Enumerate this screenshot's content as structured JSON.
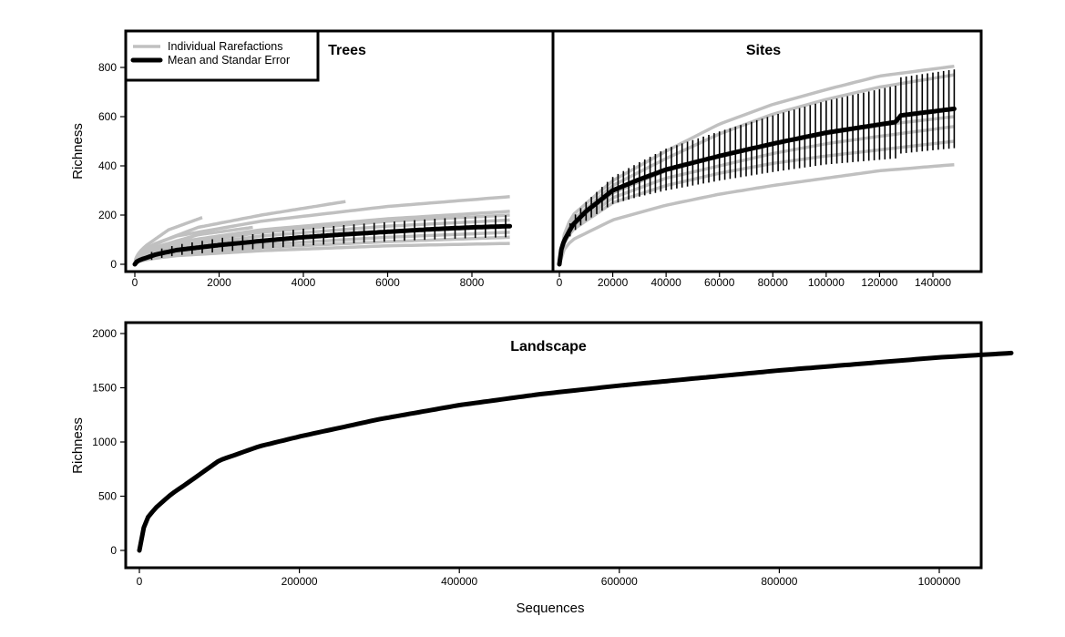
{
  "chart_data": [
    {
      "type": "line",
      "title": "Trees",
      "xlabel": "",
      "ylabel": "Richness",
      "xlim": [
        -300,
        9500
      ],
      "ylim": [
        -30,
        950
      ],
      "xticks": [
        0,
        2000,
        4000,
        6000,
        8000
      ],
      "yticks": [
        0,
        200,
        400,
        600,
        800
      ],
      "legend": {
        "placement": "top-left",
        "entries": [
          {
            "label": "Individual Rarefactions",
            "color": "#c0c0c0"
          },
          {
            "label": "Mean and Standar Error",
            "color": "#000000"
          }
        ]
      },
      "individual_series": [
        [
          [
            0,
            0
          ],
          [
            300,
            80
          ],
          [
            800,
            140
          ],
          [
            1600,
            190
          ]
        ],
        [
          [
            0,
            0
          ],
          [
            500,
            85
          ],
          [
            1500,
            150
          ],
          [
            3000,
            200
          ],
          [
            5000,
            255
          ]
        ],
        [
          [
            0,
            0
          ],
          [
            1000,
            115
          ],
          [
            3000,
            175
          ],
          [
            6000,
            235
          ],
          [
            8900,
            275
          ]
        ],
        [
          [
            0,
            0
          ],
          [
            500,
            70
          ],
          [
            1500,
            120
          ],
          [
            2800,
            150
          ]
        ],
        [
          [
            0,
            0
          ],
          [
            1000,
            90
          ],
          [
            3000,
            140
          ],
          [
            6000,
            185
          ],
          [
            8900,
            215
          ]
        ],
        [
          [
            0,
            0
          ],
          [
            1000,
            80
          ],
          [
            3000,
            130
          ],
          [
            6000,
            175
          ],
          [
            8900,
            200
          ]
        ],
        [
          [
            0,
            0
          ],
          [
            1000,
            70
          ],
          [
            3000,
            115
          ],
          [
            6000,
            155
          ],
          [
            8900,
            180
          ]
        ],
        [
          [
            0,
            0
          ],
          [
            1000,
            50
          ],
          [
            3000,
            80
          ],
          [
            6000,
            110
          ],
          [
            8900,
            130
          ]
        ],
        [
          [
            0,
            0
          ],
          [
            1000,
            40
          ],
          [
            3000,
            68
          ],
          [
            6000,
            92
          ],
          [
            8900,
            110
          ]
        ],
        [
          [
            0,
            0
          ],
          [
            1000,
            35
          ],
          [
            3000,
            55
          ],
          [
            6000,
            75
          ],
          [
            8900,
            85
          ]
        ]
      ],
      "mean": [
        [
          0,
          0
        ],
        [
          250,
          25
        ],
        [
          500,
          40
        ],
        [
          1000,
          58
        ],
        [
          2000,
          78
        ],
        [
          3000,
          95
        ],
        [
          4000,
          110
        ],
        [
          5000,
          122
        ],
        [
          6000,
          132
        ],
        [
          7000,
          142
        ],
        [
          8000,
          150
        ],
        [
          8900,
          155
        ]
      ],
      "se": [
        [
          0,
          0
        ],
        [
          500,
          18
        ],
        [
          2000,
          28
        ],
        [
          5000,
          38
        ],
        [
          8900,
          45
        ]
      ],
      "error_bar_start": 400,
      "error_bar_step": 240
    },
    {
      "type": "line",
      "title": "Sites",
      "xlabel": "",
      "ylabel": "",
      "xlim": [
        -2000,
        158000
      ],
      "ylim": [
        -30,
        950
      ],
      "xticks": [
        0,
        20000,
        40000,
        60000,
        80000,
        100000,
        120000,
        140000
      ],
      "yticks": [],
      "individual_series": [
        [
          [
            0,
            0
          ],
          [
            5000,
            200
          ],
          [
            20000,
            340
          ],
          [
            40000,
            460
          ],
          [
            60000,
            570
          ],
          [
            80000,
            650
          ],
          [
            100000,
            710
          ],
          [
            120000,
            765
          ],
          [
            148000,
            805
          ]
        ],
        [
          [
            0,
            0
          ],
          [
            5000,
            180
          ],
          [
            20000,
            320
          ],
          [
            40000,
            430
          ],
          [
            60000,
            530
          ],
          [
            80000,
            610
          ],
          [
            100000,
            670
          ],
          [
            120000,
            720
          ],
          [
            148000,
            770
          ]
        ],
        [
          [
            0,
            0
          ],
          [
            5000,
            160
          ],
          [
            20000,
            290
          ],
          [
            40000,
            380
          ],
          [
            60000,
            440
          ],
          [
            80000,
            490
          ],
          [
            100000,
            530
          ],
          [
            120000,
            565
          ],
          [
            148000,
            600
          ]
        ],
        [
          [
            0,
            0
          ],
          [
            5000,
            150
          ],
          [
            20000,
            270
          ],
          [
            40000,
            350
          ],
          [
            60000,
            400
          ],
          [
            80000,
            450
          ],
          [
            100000,
            490
          ],
          [
            120000,
            520
          ],
          [
            148000,
            560
          ]
        ],
        [
          [
            0,
            0
          ],
          [
            5000,
            140
          ],
          [
            20000,
            250
          ],
          [
            40000,
            320
          ],
          [
            60000,
            370
          ],
          [
            80000,
            410
          ],
          [
            100000,
            440
          ],
          [
            120000,
            465
          ],
          [
            148000,
            500
          ]
        ],
        [
          [
            0,
            0
          ],
          [
            5000,
            100
          ],
          [
            20000,
            180
          ],
          [
            40000,
            240
          ],
          [
            60000,
            285
          ],
          [
            80000,
            320
          ],
          [
            100000,
            350
          ],
          [
            120000,
            380
          ],
          [
            148000,
            405
          ]
        ]
      ],
      "mean": [
        [
          0,
          0
        ],
        [
          2000,
          100
        ],
        [
          5000,
          160
        ],
        [
          10000,
          215
        ],
        [
          20000,
          300
        ],
        [
          30000,
          345
        ],
        [
          40000,
          385
        ],
        [
          60000,
          440
        ],
        [
          80000,
          490
        ],
        [
          100000,
          535
        ],
        [
          126000,
          578
        ],
        [
          128000,
          605
        ],
        [
          148000,
          632
        ]
      ],
      "se": [
        [
          0,
          0
        ],
        [
          5000,
          30
        ],
        [
          20000,
          55
        ],
        [
          40000,
          85
        ],
        [
          80000,
          115
        ],
        [
          126000,
          148
        ],
        [
          128000,
          155
        ],
        [
          148000,
          160
        ]
      ],
      "error_bar_start": 4000,
      "error_bar_step": 2000
    },
    {
      "type": "line",
      "title": "Landscape",
      "xlabel": "Sequences",
      "ylabel": "Richness",
      "xlim": [
        -20000,
        1180000
      ],
      "ylim": [
        -150,
        2100
      ],
      "xticks": [
        0,
        200000,
        400000,
        600000,
        800000,
        1000000
      ],
      "yticks": [
        0,
        500,
        1000,
        1500,
        2000
      ],
      "mean": [
        [
          0,
          0
        ],
        [
          5000,
          200
        ],
        [
          10000,
          300
        ],
        [
          20000,
          390
        ],
        [
          40000,
          520
        ],
        [
          60000,
          620
        ],
        [
          100000,
          830
        ],
        [
          150000,
          960
        ],
        [
          200000,
          1050
        ],
        [
          300000,
          1210
        ],
        [
          400000,
          1340
        ],
        [
          500000,
          1440
        ],
        [
          600000,
          1520
        ],
        [
          700000,
          1590
        ],
        [
          800000,
          1660
        ],
        [
          900000,
          1720
        ],
        [
          1000000,
          1780
        ],
        [
          1090000,
          1820
        ]
      ]
    }
  ]
}
